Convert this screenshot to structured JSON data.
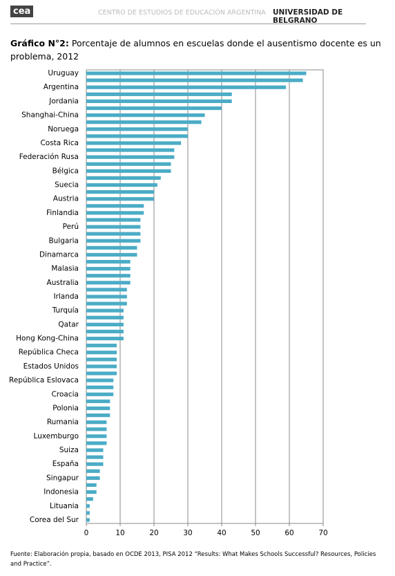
{
  "header": {
    "logo": "cea",
    "center": "CENTRO DE ESTUDIOS DE EDUCACIÓN ARGENTINA",
    "university": "UNIVERSIDAD DE BELGRANO"
  },
  "chart_data": {
    "type": "bar",
    "orientation": "horizontal",
    "title_label": "Gráfico N°2:",
    "title": "Porcentaje de alumnos en escuelas donde el ausentismo docente es un problema, 2012",
    "categories": [
      "Uruguay",
      null,
      "Argentina",
      null,
      "Jordania",
      null,
      "Shanghai-China",
      null,
      "Noruega",
      null,
      "Costa Rica",
      null,
      "Federación Rusa",
      null,
      "Bélgica",
      null,
      "Suecia",
      null,
      "Austria",
      null,
      "Finlandia",
      null,
      "Perú",
      null,
      "Bulgaria",
      null,
      "Dinamarca",
      null,
      "Malasia",
      null,
      "Australia",
      null,
      "Irlanda",
      null,
      "Turquía",
      null,
      "Qatar",
      null,
      "Hong Kong-China",
      null,
      "República Checa",
      null,
      "Estados Unidos",
      null,
      "República Eslovaca",
      null,
      "Croacia",
      null,
      "Polonia",
      null,
      "Rumania",
      null,
      "Luxemburgo",
      null,
      "Suiza",
      null,
      "España",
      null,
      "Singapur",
      null,
      "Indonesia",
      null,
      "Lituania",
      null,
      "Corea del Sur"
    ],
    "values": [
      65,
      64,
      59,
      43,
      43,
      40,
      35,
      34,
      30,
      30,
      28,
      26,
      26,
      25,
      25,
      22,
      21,
      20,
      20,
      17,
      17,
      16,
      16,
      16,
      16,
      15,
      15,
      13,
      13,
      13,
      13,
      12,
      12,
      12,
      11,
      11,
      11,
      11,
      11,
      9,
      9,
      9,
      9,
      9,
      8,
      8,
      8,
      7,
      7,
      7,
      6,
      6,
      6,
      6,
      5,
      5,
      5,
      4,
      4,
      3,
      3,
      2,
      1,
      1,
      1
    ],
    "color": "#4bacc6",
    "xlim": [
      0,
      70
    ],
    "xticks": [
      0,
      10,
      20,
      30,
      40,
      50,
      60,
      70
    ],
    "grid": true
  },
  "source": "Fuente: Elaboración propia, basado en OCDE 2013, PISA 2012 “Results: What Makes Schools Successful? Resources, Policies and Practice”."
}
